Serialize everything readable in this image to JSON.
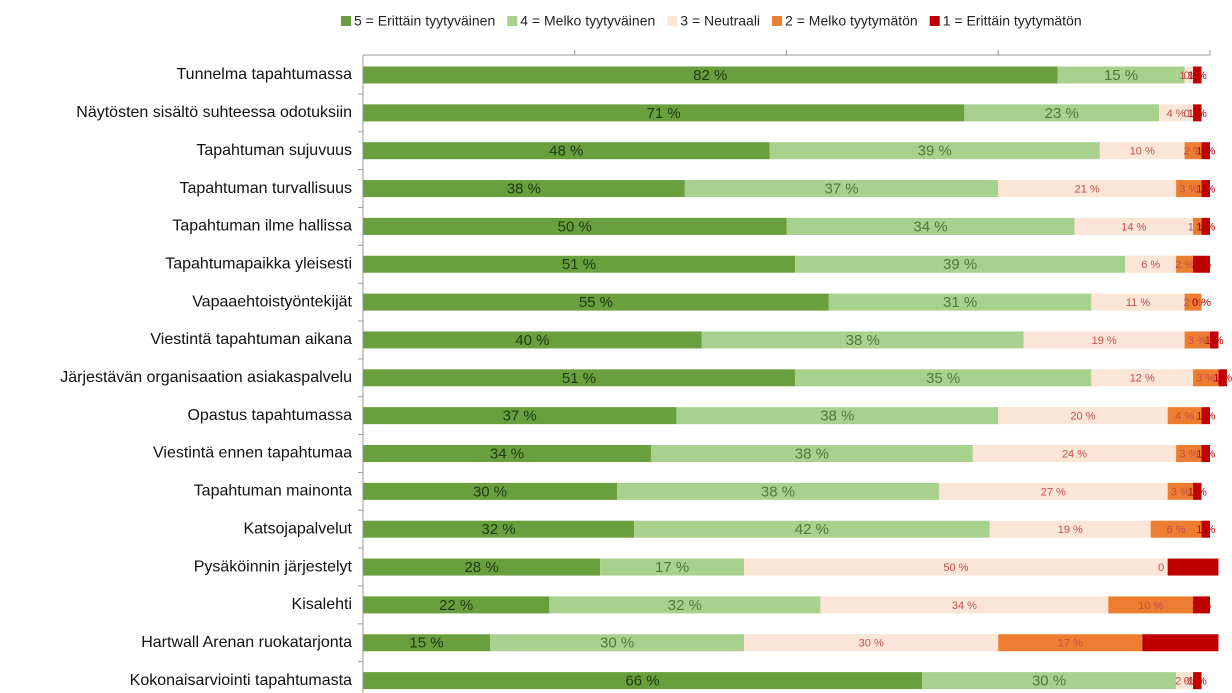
{
  "chart_data": {
    "type": "stacked-bar-horizontal",
    "categories": [
      "Tunnelma tapahtumassa",
      "Näytösten sisältö suhteessa odotuksiin",
      "Tapahtuman sujuvuus",
      "Tapahtuman turvallisuus",
      "Tapahtuman ilme hallissa",
      "Tapahtumapaikka yleisesti",
      "Vapaaehtoistyöntekijät",
      "Viestintä tapahtuman aikana",
      "Järjestävän organisaation asiakaspalvelu",
      "Opastus tapahtumassa",
      "Viestintä ennen tapahtumaa",
      "Tapahtuman mainonta",
      "Katsojapalvelut",
      "Pysäköinnin järjestelyt",
      "Kisalehti",
      "Hartwall Arenan ruokatarjonta",
      "Kokonaisarviointi tapahtumasta"
    ],
    "xlim": [
      0,
      100
    ],
    "series": [
      {
        "name": "5 = Erittäin tyytyväinen",
        "color": "#6a9f3e",
        "values": [
          82,
          71,
          48,
          38,
          50,
          51,
          55,
          40,
          51,
          37,
          34,
          30,
          32,
          28,
          22,
          15,
          66
        ],
        "value_labels": [
          "82 %",
          "71 %",
          "48 %",
          "38 %",
          "50 %",
          "51 %",
          "55 %",
          "40 %",
          "51 %",
          "37 %",
          "34 %",
          "30 %",
          "32 %",
          "28 %",
          "22 %",
          "15 %",
          "66 %"
        ]
      },
      {
        "name": "4 = Melko tyytyväinen",
        "color": "#a9d18e",
        "values": [
          15,
          23,
          39,
          37,
          34,
          39,
          31,
          38,
          35,
          38,
          38,
          38,
          42,
          17,
          32,
          30,
          30
        ],
        "value_labels": [
          "15 %",
          "23 %",
          "39 %",
          "37 %",
          "34 %",
          "39 %",
          "31 %",
          "38 %",
          "35 %",
          "38 %",
          "38 %",
          "38 %",
          "42 %",
          "17 %",
          "32 %",
          "30 %",
          "30 %"
        ]
      },
      {
        "name": "3 = Neutraali",
        "color": "#fbe5d6",
        "values": [
          1,
          4,
          10,
          21,
          14,
          6,
          11,
          19,
          12,
          20,
          24,
          27,
          19,
          50,
          34,
          30,
          2
        ],
        "value_labels": [
          "1 %",
          "4 %",
          "10 %",
          "21 %",
          "14 %",
          "6 %",
          "11 %",
          "19 %",
          "12 %",
          "20 %",
          "24 %",
          "27 %",
          "19 %",
          "50 %",
          "34 %",
          "30 %",
          "2 %"
        ]
      },
      {
        "name": "2 = Melko tyytymätön",
        "color": "#ed7d31",
        "values": [
          0,
          0,
          2,
          3,
          1,
          2,
          2,
          3,
          3,
          4,
          3,
          3,
          6,
          0,
          10,
          17,
          0
        ],
        "value_labels": [
          "0 %",
          "0 %",
          "2 %",
          "3 %",
          "1 %",
          "2 %",
          "2 %",
          "3 %",
          "3 %",
          "4 %",
          "3 %",
          "3 %",
          "6 %",
          "0 %",
          "10 %",
          "17 %",
          "0 %"
        ]
      },
      {
        "name": "1 = Erittäin tyytymätön",
        "color": "#c00000",
        "values": [
          1,
          1,
          1,
          1,
          1,
          2,
          0,
          1,
          1,
          1,
          1,
          1,
          1,
          6,
          2,
          9,
          1
        ],
        "value_labels": [
          "1 %",
          "1 %",
          "1 %",
          "1 %",
          "1 %",
          "2 %",
          "0 %",
          "1 %",
          "1 %",
          "1 %",
          "1 %",
          "1 %",
          "1 %",
          "6 %",
          "2 %",
          "9 %",
          "1 %"
        ]
      }
    ]
  }
}
